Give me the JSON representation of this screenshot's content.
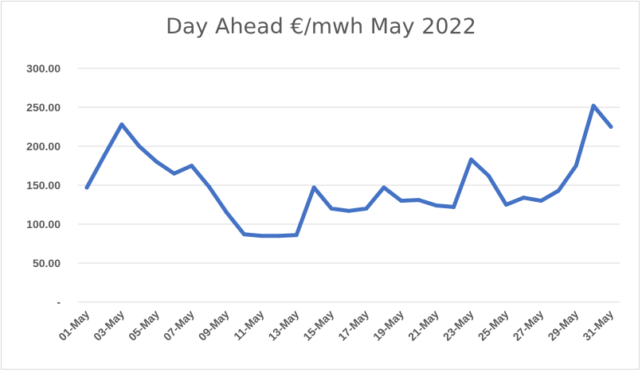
{
  "chart_data": {
    "type": "line",
    "title": "Day Ahead €/mwh May 2022",
    "xlabel": "",
    "ylabel": "",
    "ylim": [
      0,
      300
    ],
    "yticks": [
      "-",
      "50.00",
      "100.00",
      "150.00",
      "200.00",
      "250.00",
      "300.00"
    ],
    "x": [
      "01-May",
      "02-May",
      "03-May",
      "04-May",
      "05-May",
      "06-May",
      "07-May",
      "08-May",
      "09-May",
      "10-May",
      "11-May",
      "12-May",
      "13-May",
      "14-May",
      "15-May",
      "16-May",
      "17-May",
      "18-May",
      "19-May",
      "20-May",
      "21-May",
      "22-May",
      "23-May",
      "24-May",
      "25-May",
      "26-May",
      "27-May",
      "28-May",
      "29-May",
      "30-May",
      "31-May"
    ],
    "xtick_labels": [
      "01-May",
      "03-May",
      "05-May",
      "07-May",
      "09-May",
      "11-May",
      "13-May",
      "15-May",
      "17-May",
      "19-May",
      "21-May",
      "23-May",
      "25-May",
      "27-May",
      "29-May",
      "31-May"
    ],
    "series": [
      {
        "values": [
          147,
          188,
          228,
          200,
          180,
          165,
          175,
          148,
          115,
          87,
          85,
          85,
          86,
          147,
          120,
          117,
          120,
          147,
          130,
          131,
          124,
          122,
          183,
          162,
          125,
          134,
          130,
          143,
          175,
          252,
          225
        ],
        "color": "#4472c4"
      }
    ],
    "grid": true,
    "legend": "none"
  }
}
